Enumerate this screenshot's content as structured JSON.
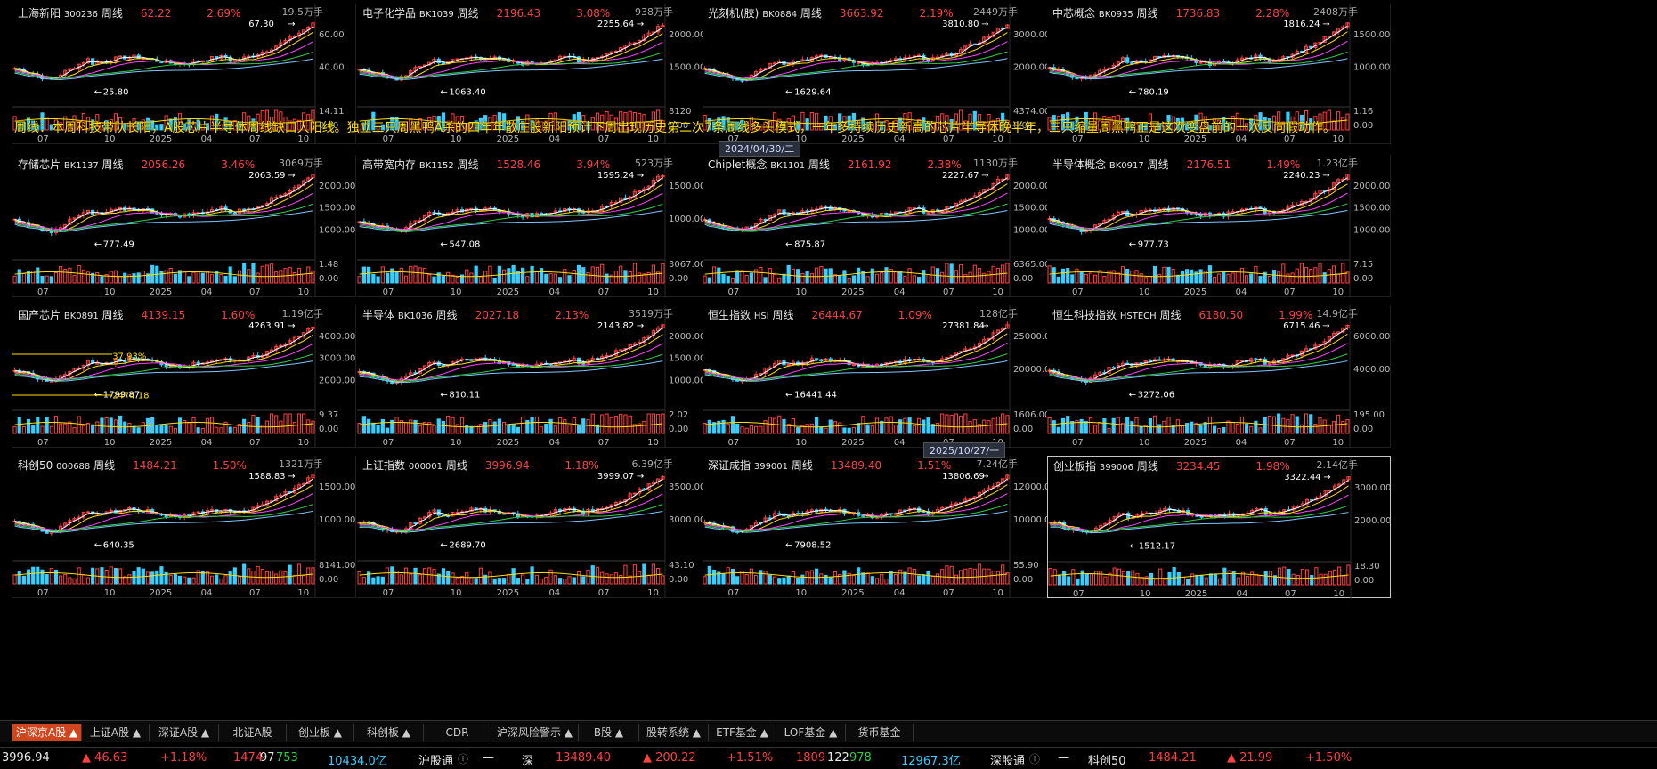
{
  "banner": "周线：本周科技带队长阳，A股芯片半导体周线缺口大阳线。独立三只周黑鸭A杀的四年年散庄股新阳预计下周出现历史第二次7条周线多头模式，一年多持续历史新高的芯片半导体晚半年，三只缩量周黑鸭正是这次变盘前的一次反向假动作。",
  "colors": {
    "up": "#ff4040",
    "down": "#36d0ff",
    "accent": "#d0451b",
    "banner": "#ffe100"
  },
  "date_tips": [
    "2024/04/30/二",
    "2025/10/27/一"
  ],
  "x_ticks": [
    "07",
    "10",
    "2025",
    "04",
    "07",
    "10"
  ],
  "panels": [
    {
      "name": "上海新阳",
      "code": "300236",
      "cycle": "周线",
      "price": "62.22",
      "pct": "2.69%",
      "vol": "19.5万手",
      "high": "67.30",
      "low": "25.80",
      "y_labels": [
        "60.00",
        "40.00"
      ],
      "vol_labels": [
        "14.11",
        "0.00"
      ]
    },
    {
      "name": "电子化学品",
      "code": "BK1039",
      "cycle": "周线",
      "price": "2196.43",
      "pct": "3.08%",
      "vol": "938万手",
      "high": "2255.64",
      "low": "1063.40",
      "y_labels": [
        "2000.00",
        "1500.00"
      ],
      "vol_labels": [
        "8120",
        "0.00"
      ]
    },
    {
      "name": "光刻机(胶)",
      "code": "BK0884",
      "cycle": "周线",
      "price": "3663.92",
      "pct": "2.19%",
      "vol": "2449万手",
      "high": "3810.80",
      "low": "1629.64",
      "y_labels": [
        "3000.00",
        "2000.00"
      ],
      "vol_labels": [
        "4374.00",
        "0.00"
      ]
    },
    {
      "name": "中芯概念",
      "code": "BK0935",
      "cycle": "周线",
      "price": "1736.83",
      "pct": "2.28%",
      "vol": "2408万手",
      "high": "1816.24",
      "low": "780.19",
      "y_labels": [
        "1500.00",
        "1000.00"
      ],
      "vol_labels": [
        "1.16",
        "0.00"
      ]
    },
    {
      "name": "存储芯片",
      "code": "BK1137",
      "cycle": "周线",
      "price": "2056.26",
      "pct": "3.46%",
      "vol": "3069万手",
      "high": "2063.59",
      "low": "777.49",
      "y_labels": [
        "2000.00",
        "1500.00",
        "1000.00"
      ],
      "vol_labels": [
        "1.48",
        "0.00"
      ]
    },
    {
      "name": "高带宽内存",
      "code": "BK1152",
      "cycle": "周线",
      "price": "1528.46",
      "pct": "3.94%",
      "vol": "523万手",
      "high": "1595.24",
      "low": "547.08",
      "y_labels": [
        "1500.00",
        "1000.00"
      ],
      "vol_labels": [
        "3067.00",
        "0.00"
      ]
    },
    {
      "name": "Chiplet概念",
      "code": "BK1101",
      "cycle": "周线",
      "price": "2161.92",
      "pct": "2.38%",
      "vol": "1130万手",
      "high": "2227.67",
      "low": "875.87",
      "y_labels": [
        "2000.00",
        "1500.00",
        "1000.00"
      ],
      "vol_labels": [
        "6365.00",
        "0.00"
      ]
    },
    {
      "name": "半导体概念",
      "code": "BK0917",
      "cycle": "周线",
      "price": "2176.51",
      "pct": "1.49%",
      "vol": "1.23亿手",
      "high": "2240.23",
      "low": "977.73",
      "y_labels": [
        "2000.00",
        "1500.00",
        "1000.00"
      ],
      "vol_labels": [
        "7.15",
        "0.00"
      ]
    },
    {
      "name": "国产芯片",
      "code": "BK0891",
      "cycle": "周线",
      "price": "4139.15",
      "pct": "1.60%",
      "vol": "1.19亿手",
      "high": "4263.91",
      "low": "1799.87",
      "y_labels": [
        "4000.00",
        "3000.00",
        "2000.00"
      ],
      "vol_labels": [
        "9.37",
        "0.00"
      ],
      "extra": [
        "37.93%",
        "2474.18"
      ]
    },
    {
      "name": "半导体",
      "code": "BK1036",
      "cycle": "周线",
      "price": "2027.18",
      "pct": "2.13%",
      "vol": "3519万手",
      "high": "2143.82",
      "low": "810.11",
      "y_labels": [
        "2000.00",
        "1500.00",
        "1000.00"
      ],
      "vol_labels": [
        "2.02",
        "0.00"
      ]
    },
    {
      "name": "恒生指数",
      "code": "HSI",
      "cycle": "周线",
      "price": "26444.67",
      "pct": "1.09%",
      "vol": "128亿手",
      "high": "27381.84",
      "low": "16441.44",
      "y_labels": [
        "25000.00",
        "20000.00"
      ],
      "vol_labels": [
        "1606.00",
        "0.00"
      ]
    },
    {
      "name": "恒生科技指数",
      "code": "HSTECH",
      "cycle": "周线",
      "price": "6180.50",
      "pct": "1.99%",
      "vol": "14.9亿手",
      "high": "6715.46",
      "low": "3272.06",
      "y_labels": [
        "6000.00",
        "4000.00"
      ],
      "vol_labels": [
        "195.00",
        "0.00"
      ]
    },
    {
      "name": "科创50",
      "code": "000688",
      "cycle": "周线",
      "price": "1484.21",
      "pct": "1.50%",
      "vol": "1321万手",
      "high": "1588.83",
      "low": "640.35",
      "y_labels": [
        "1500.00",
        "1000.00"
      ],
      "vol_labels": [
        "8141.00",
        "0.00"
      ]
    },
    {
      "name": "上证指数",
      "code": "000001",
      "cycle": "周线",
      "price": "3996.94",
      "pct": "1.18%",
      "vol": "6.39亿手",
      "high": "3999.07",
      "low": "2689.70",
      "y_labels": [
        "3500.00",
        "3000.00"
      ],
      "vol_labels": [
        "43.10",
        "0.00"
      ]
    },
    {
      "name": "深证成指",
      "code": "399001",
      "cycle": "周线",
      "price": "13489.40",
      "pct": "1.51%",
      "vol": "7.24亿手",
      "high": "13806.69",
      "low": "7908.52",
      "y_labels": [
        "12000.00",
        "10000.00"
      ],
      "vol_labels": [
        "55.90",
        "0.00"
      ]
    },
    {
      "name": "创业板指",
      "code": "399006",
      "cycle": "周线",
      "price": "3234.45",
      "pct": "1.98%",
      "vol": "2.14亿手",
      "high": "3322.44",
      "low": "1512.17",
      "y_labels": [
        "3000.00",
        "2000.00"
      ],
      "vol_labels": [
        "18.30",
        "0.00"
      ]
    }
  ],
  "tabs": [
    "沪深京A股 ▲",
    "上证A股 ▲",
    "深证A股 ▲",
    "北证A股",
    "创业板 ▲",
    "科创板 ▲",
    "CDR",
    "沪深风险警示 ▲",
    "B股 ▲",
    "股转系统 ▲",
    "ETF基金 ▲",
    "LOF基金 ▲",
    "货币基金"
  ],
  "status": {
    "sh_index": "3996.94",
    "sh_chg": "▲ 46.63",
    "sh_pct": "+1.18%",
    "sh_up": "1474",
    "sh_flat": "97",
    "sh_down": "753",
    "sh_amt": "10434.0亿",
    "hgt": "沪股通",
    "hgt_val": "—",
    "sz_label": "深",
    "sz_index": "13489.40",
    "sz_chg": "▲ 200.22",
    "sz_pct": "+1.51%",
    "sz_up": "1809",
    "sz_flat": "122",
    "sz_down": "978",
    "sz_amt": "12967.3亿",
    "sgt": "深股通",
    "sgt_val": "—",
    "kc_label": "科创50",
    "kc_index": "1484.21",
    "kc_chg": "▲ 21.99",
    "kc_pct": "+1.50%",
    "info_icon": "info-circle-icon"
  }
}
